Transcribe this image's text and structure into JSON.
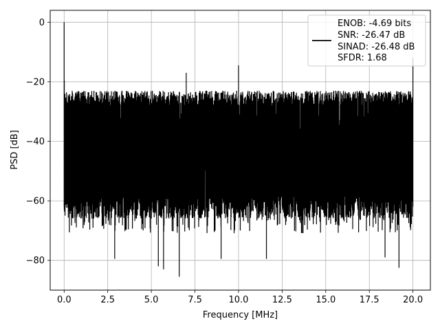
{
  "chart_data": {
    "type": "line",
    "xlabel": "Frequency [MHz]",
    "ylabel": "PSD [dB]",
    "xlim": [
      -0.8,
      21.0
    ],
    "ylim": [
      -90,
      4
    ],
    "xticks": [
      0.0,
      2.5,
      5.0,
      7.5,
      10.0,
      12.5,
      15.0,
      17.5,
      20.0
    ],
    "xtick_labels": [
      "0.0",
      "2.5",
      "5.0",
      "7.5",
      "10.0",
      "12.5",
      "15.0",
      "17.5",
      "20.0"
    ],
    "yticks": [
      0,
      -20,
      -40,
      -60,
      -80
    ],
    "ytick_labels": [
      "0",
      "−20",
      "−40",
      "−60",
      "−80"
    ],
    "grid": true,
    "legend_position": "upper-right",
    "series": [
      {
        "name": "ENOB: -4.69 bits\nSNR: -26.47 dB\nSINAD: -26.48 dB\nSFDR: 1.68",
        "legend_lines": [
          "ENOB: -4.69 bits",
          "SNR: -26.47 dB",
          "SINAD: -26.48 dB",
          "SFDR: 1.68"
        ],
        "color": "#000000",
        "x_range_mhz": [
          0.0,
          20.0
        ],
        "noise_upper_db": -22,
        "noise_lower_db": -62,
        "peaks": [
          {
            "x": 0.0,
            "y": 0.0
          },
          {
            "x": 0.01,
            "y": -19.5
          },
          {
            "x": 7.0,
            "y": -17.0
          },
          {
            "x": 10.0,
            "y": -14.5
          },
          {
            "x": 20.0,
            "y": -12.0
          }
        ],
        "troughs": [
          {
            "x": 2.9,
            "y": -79.5
          },
          {
            "x": 5.4,
            "y": -82.0
          },
          {
            "x": 5.7,
            "y": -83.0
          },
          {
            "x": 6.6,
            "y": -85.5
          },
          {
            "x": 9.0,
            "y": -79.5
          },
          {
            "x": 11.6,
            "y": -79.5
          },
          {
            "x": 18.4,
            "y": -79.0
          },
          {
            "x": 19.2,
            "y": -82.5
          }
        ]
      }
    ]
  }
}
